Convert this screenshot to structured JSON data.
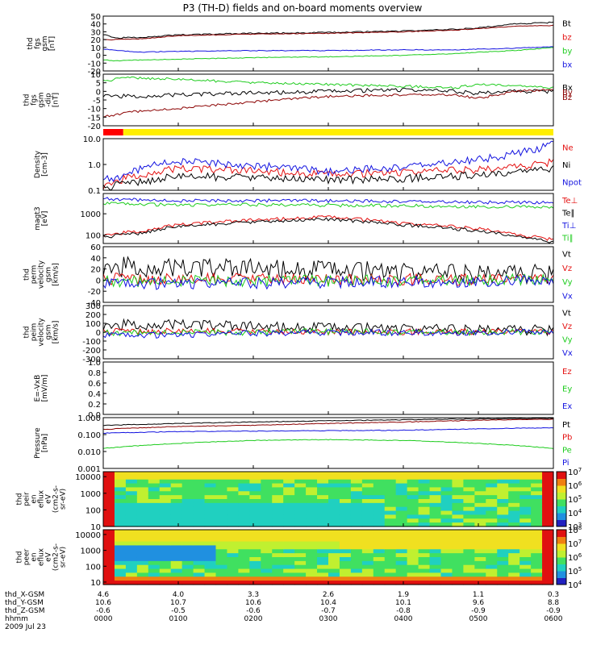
{
  "title": "P3 (TH-D) fields and on-board moments overview",
  "colors": {
    "black": "#000000",
    "red": "#e41010",
    "darkred": "#8b0000",
    "green": "#1ecc1e",
    "blue": "#1414e0",
    "mode_red": "#ff0000",
    "mode_yellow": "#ffee00"
  },
  "chart_data": [
    {
      "id": "fgs_gsm",
      "type": "line",
      "ylabel": [
        "thd",
        "fgs",
        "gsm",
        "[nT]"
      ],
      "ylim": [
        -20,
        50
      ],
      "ytick_labels": [
        "50",
        "40",
        "30",
        "20",
        "10",
        "0",
        "-10",
        "-20"
      ],
      "series": [
        {
          "name": "Bt",
          "color": "black",
          "x": [
            0,
            10,
            30,
            60,
            120,
            180,
            240,
            280,
            300,
            330,
            360
          ],
          "y": [
            27,
            22,
            23,
            26,
            28,
            29,
            31,
            33,
            35,
            40,
            42
          ]
        },
        {
          "name": "bz",
          "color": "darkred",
          "x": [
            0,
            10,
            30,
            60,
            120,
            180,
            240,
            280,
            300,
            330,
            360
          ],
          "y": [
            20,
            20,
            21,
            25,
            27,
            28,
            30,
            32,
            34,
            37,
            38
          ]
        },
        {
          "name": "by",
          "color": "green",
          "x": [
            0,
            10,
            30,
            60,
            120,
            180,
            240,
            280,
            300,
            330,
            360
          ],
          "y": [
            -6,
            -7,
            -6,
            -5,
            -3,
            -2,
            0,
            2,
            4,
            6,
            10
          ]
        },
        {
          "name": "bx",
          "color": "blue",
          "x": [
            0,
            10,
            30,
            60,
            120,
            180,
            240,
            280,
            300,
            330,
            360
          ],
          "y": [
            8,
            6,
            4,
            5,
            6,
            6,
            7,
            7,
            8,
            9,
            11
          ]
        }
      ]
    },
    {
      "id": "fgs_gsm_dip",
      "type": "line",
      "ylabel": [
        "thd",
        "fgs",
        "gsm",
        "-dip",
        "[nT]"
      ],
      "ylim": [
        -20,
        10
      ],
      "ytick_labels": [
        "10",
        "5",
        "0",
        "-5",
        "-10",
        "-15",
        "-20"
      ],
      "series": [
        {
          "name": "Bx",
          "color": "black",
          "x": [
            0,
            20,
            60,
            120,
            180,
            240,
            280,
            300,
            330,
            360
          ],
          "y": [
            -2,
            -3,
            -2,
            -1,
            0,
            1,
            0,
            -1,
            0,
            0
          ]
        },
        {
          "name": "By",
          "color": "green",
          "x": [
            0,
            20,
            60,
            120,
            180,
            240,
            280,
            300,
            330,
            360
          ],
          "y": [
            6,
            8,
            7,
            5,
            4,
            3,
            2,
            4,
            3,
            2
          ]
        },
        {
          "name": "Bz",
          "color": "darkred",
          "x": [
            0,
            20,
            60,
            120,
            180,
            240,
            280,
            300,
            330,
            360
          ],
          "y": [
            -15,
            -12,
            -10,
            -6,
            -3,
            -2,
            -2,
            -4,
            0,
            1
          ]
        }
      ]
    },
    {
      "id": "mode_bar",
      "type": "bar",
      "segments": [
        {
          "start": 0,
          "end": 16,
          "color": "mode_red"
        },
        {
          "start": 16,
          "end": 360,
          "color": "mode_yellow"
        }
      ]
    },
    {
      "id": "density",
      "type": "line",
      "ylabel": [
        "Density",
        "[cm-3]"
      ],
      "yscale": "log",
      "ylim": [
        0.1,
        10
      ],
      "ytick_labels": [
        "10.0",
        "1.0",
        "0.1"
      ],
      "series": [
        {
          "name": "Ne",
          "color": "red",
          "x": [
            0,
            20,
            40,
            60,
            120,
            180,
            240,
            280,
            320,
            350,
            360
          ],
          "y": [
            0.15,
            0.3,
            0.5,
            0.7,
            0.55,
            0.4,
            0.5,
            0.6,
            0.7,
            1.0,
            1.3
          ]
        },
        {
          "name": "Ni",
          "color": "black",
          "x": [
            0,
            20,
            40,
            60,
            120,
            180,
            240,
            280,
            320,
            350,
            360
          ],
          "y": [
            0.12,
            0.18,
            0.25,
            0.35,
            0.3,
            0.25,
            0.28,
            0.35,
            0.4,
            0.6,
            0.7
          ]
        },
        {
          "name": "Npot",
          "color": "blue",
          "x": [
            0,
            10,
            20,
            40,
            60,
            120,
            180,
            240,
            280,
            320,
            350,
            360
          ],
          "y": [
            0.25,
            0.3,
            0.4,
            1.0,
            1.3,
            0.9,
            0.5,
            0.8,
            1.2,
            2.0,
            4.0,
            8.0
          ]
        }
      ]
    },
    {
      "id": "temperature",
      "type": "line",
      "ylabel": [
        "magt3",
        "[eV]"
      ],
      "yscale": "log",
      "ylim": [
        40,
        9000
      ],
      "ytick_labels": [
        "1000",
        "100"
      ],
      "series": [
        {
          "name": "Te⊥",
          "color": "red",
          "x": [
            0,
            30,
            60,
            120,
            180,
            240,
            300,
            330,
            360
          ],
          "y": [
            100,
            150,
            300,
            500,
            700,
            350,
            200,
            100,
            60
          ]
        },
        {
          "name": "Te∥",
          "color": "black",
          "x": [
            0,
            30,
            60,
            120,
            180,
            240,
            300,
            330,
            360
          ],
          "y": [
            80,
            120,
            250,
            400,
            550,
            300,
            150,
            80,
            45
          ]
        },
        {
          "name": "Ti⊥",
          "color": "blue",
          "x": [
            0,
            60,
            120,
            180,
            240,
            300,
            360
          ],
          "y": [
            5000,
            4000,
            4200,
            4000,
            3800,
            3500,
            3300
          ]
        },
        {
          "name": "Ti∥",
          "color": "green",
          "x": [
            0,
            60,
            120,
            180,
            240,
            300,
            360
          ],
          "y": [
            3000,
            2600,
            2700,
            2500,
            2400,
            2200,
            2000
          ]
        }
      ]
    },
    {
      "id": "velocity_perm",
      "type": "line",
      "ylabel": [
        "thd",
        "perm",
        "velocity",
        "gsm",
        "[km/s]"
      ],
      "ylim": [
        -40,
        60
      ],
      "ytick_labels": [
        "60",
        "40",
        "20",
        "0",
        "-20",
        "-40"
      ],
      "series": [
        {
          "name": "Vt",
          "color": "black",
          "x": [
            0,
            60,
            120,
            180,
            240,
            300,
            360
          ],
          "y": [
            25,
            22,
            20,
            18,
            15,
            12,
            10
          ]
        },
        {
          "name": "Vz",
          "color": "red",
          "x": [
            0,
            60,
            120,
            180,
            240,
            300,
            360
          ],
          "y": [
            2,
            1,
            2,
            0,
            1,
            0,
            1
          ]
        },
        {
          "name": "Vy",
          "color": "green",
          "x": [
            0,
            60,
            120,
            180,
            240,
            300,
            360
          ],
          "y": [
            -3,
            -2,
            -1,
            -2,
            -1,
            0,
            0
          ]
        },
        {
          "name": "Vx",
          "color": "blue",
          "x": [
            0,
            60,
            120,
            180,
            240,
            300,
            360
          ],
          "y": [
            -8,
            -6,
            -5,
            -4,
            -3,
            -2,
            -2
          ]
        }
      ]
    },
    {
      "id": "velocity_peim",
      "type": "line",
      "ylabel": [
        "thd",
        "peim",
        "velocity",
        "gsm",
        "[km/s]"
      ],
      "ylim": [
        -300,
        300
      ],
      "ytick_labels": [
        "300",
        "200",
        "100",
        "0",
        "-100",
        "-200",
        "-300"
      ],
      "series": [
        {
          "name": "Vt",
          "color": "black",
          "x": [
            0,
            60,
            120,
            180,
            240,
            300,
            360
          ],
          "y": [
            80,
            90,
            60,
            50,
            40,
            30,
            20
          ]
        },
        {
          "name": "Vz",
          "color": "red",
          "x": [
            0,
            60,
            120,
            180,
            240,
            300,
            360
          ],
          "y": [
            5,
            10,
            5,
            0,
            3,
            0,
            2
          ]
        },
        {
          "name": "Vy",
          "color": "green",
          "x": [
            0,
            60,
            120,
            180,
            240,
            300,
            360
          ],
          "y": [
            -10,
            -5,
            0,
            5,
            0,
            -2,
            0
          ]
        },
        {
          "name": "Vx",
          "color": "blue",
          "x": [
            0,
            60,
            120,
            180,
            240,
            300,
            360
          ],
          "y": [
            -40,
            -30,
            -10,
            -5,
            -5,
            0,
            0
          ]
        }
      ]
    },
    {
      "id": "efield",
      "type": "line",
      "ylabel": [
        "E=-VxB",
        "[mV/m]"
      ],
      "ylim": [
        0,
        1
      ],
      "ytick_labels": [
        "1.0",
        "0.8",
        "0.6",
        "0.4",
        "0.2",
        "0.0"
      ],
      "series": [
        {
          "name": "Ez",
          "color": "red",
          "x": [],
          "y": []
        },
        {
          "name": "Ey",
          "color": "green",
          "x": [],
          "y": []
        },
        {
          "name": "Ex",
          "color": "blue",
          "x": [],
          "y": []
        }
      ]
    },
    {
      "id": "pressure",
      "type": "line",
      "ylabel": [
        "Pressure",
        "[nPa]"
      ],
      "yscale": "log",
      "ylim": [
        0.001,
        1
      ],
      "ytick_labels": [
        "1.000",
        "0.100",
        "0.010",
        "0.001"
      ],
      "series": [
        {
          "name": "Pt",
          "color": "black",
          "x": [
            0,
            60,
            120,
            180,
            240,
            300,
            360
          ],
          "y": [
            0.35,
            0.45,
            0.55,
            0.65,
            0.75,
            0.85,
            0.9
          ]
        },
        {
          "name": "Pb",
          "color": "darkred",
          "x": [
            0,
            60,
            120,
            180,
            240,
            300,
            360
          ],
          "y": [
            0.2,
            0.3,
            0.35,
            0.45,
            0.55,
            0.7,
            0.8
          ]
        },
        {
          "name": "Pe",
          "color": "green",
          "x": [
            0,
            60,
            120,
            180,
            240,
            300,
            360
          ],
          "y": [
            0.015,
            0.03,
            0.045,
            0.05,
            0.045,
            0.03,
            0.015
          ]
        },
        {
          "name": "Pi",
          "color": "blue",
          "x": [
            0,
            60,
            120,
            180,
            240,
            300,
            360
          ],
          "y": [
            0.12,
            0.15,
            0.16,
            0.17,
            0.18,
            0.22,
            0.25
          ]
        }
      ]
    },
    {
      "id": "peir_spec",
      "type": "heatmap",
      "ylabel": [
        "thd",
        "peir",
        "en",
        "eflux",
        "eV",
        "(cm2-s-",
        "sr-eV)"
      ],
      "yscale": "log",
      "ylim": [
        10,
        20000
      ],
      "ytick_labels": [
        "10000",
        "1000",
        "100",
        "10"
      ],
      "colorbar": {
        "min_exp": 3,
        "max_exp": 7
      }
    },
    {
      "id": "peer_spec",
      "type": "heatmap",
      "ylabel": [
        "thd",
        "peer",
        "en",
        "eflux",
        "eV",
        "(cm2-s-",
        "sr-eV)"
      ],
      "yscale": "log",
      "ylim": [
        7,
        20000
      ],
      "ytick_labels": [
        "10000",
        "1000",
        "100",
        "10"
      ],
      "colorbar": {
        "min_exp": 4,
        "max_exp": 8
      }
    }
  ],
  "legends": [
    [
      "Bt",
      "bz",
      "by",
      "bx"
    ],
    [
      "Bx",
      "By",
      "Bz"
    ],
    [],
    [
      "Ne",
      "Ni",
      "Npot"
    ],
    [
      "Te⊥",
      "Te∥",
      "Ti⊥",
      "Ti∥"
    ],
    [
      "Vt",
      "Vz",
      "Vy",
      "Vx"
    ],
    [
      "Vt",
      "Vz",
      "Vy",
      "Vx"
    ],
    [
      "Ez",
      "Ey",
      "Ex"
    ],
    [
      "Pt",
      "Pb",
      "Pe",
      "Pi"
    ]
  ],
  "ephemeris": {
    "row_labels": [
      "thd_X-GSM",
      "thd_Y-GSM",
      "thd_Z-GSM",
      "hhmm"
    ],
    "date": "2009 Jul 23",
    "columns": [
      {
        "x": "4.6",
        "y": "10.6",
        "z": "-0.6",
        "t": "0000"
      },
      {
        "x": "4.0",
        "y": "10.7",
        "z": "-0.5",
        "t": "0100"
      },
      {
        "x": "3.3",
        "y": "10.6",
        "z": "-0.6",
        "t": "0200"
      },
      {
        "x": "2.6",
        "y": "10.4",
        "z": "-0.7",
        "t": "0300"
      },
      {
        "x": "1.9",
        "y": "10.1",
        "z": "-0.8",
        "t": "0400"
      },
      {
        "x": "1.1",
        "y": "9.6",
        "z": "-0.9",
        "t": "0500"
      },
      {
        "x": "0.3",
        "y": "8.8",
        "z": "-0.9",
        "t": "0600"
      }
    ]
  }
}
